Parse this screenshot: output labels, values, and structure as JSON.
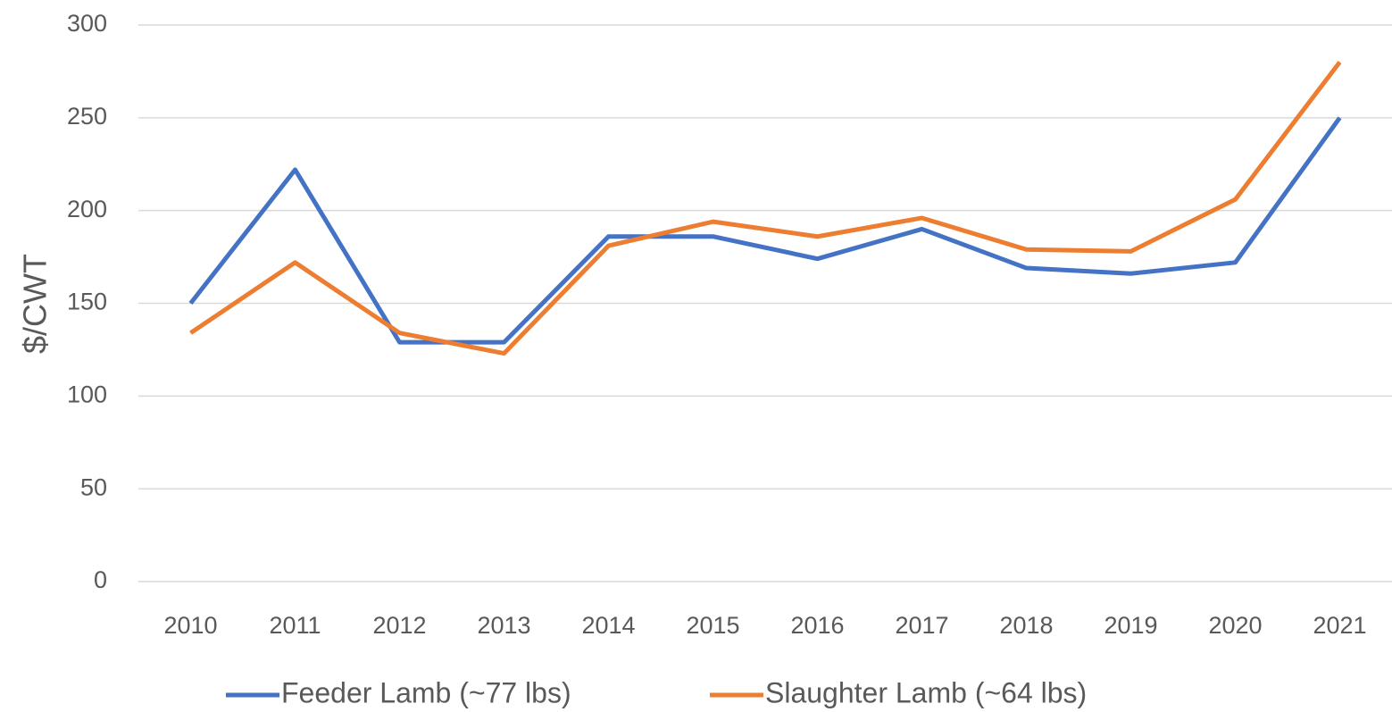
{
  "chart_data": {
    "type": "line",
    "y_label": "$/CWT",
    "categories": [
      "2010",
      "2011",
      "2012",
      "2013",
      "2014",
      "2015",
      "2016",
      "2017",
      "2018",
      "2019",
      "2020",
      "2021"
    ],
    "series": [
      {
        "name": "Feeder Lamb (~77 lbs)",
        "color": "#4472c4",
        "values": [
          150,
          222,
          129,
          129,
          186,
          186,
          174,
          190,
          169,
          166,
          172,
          250
        ]
      },
      {
        "name": "Slaughter Lamb (~64 lbs)",
        "color": "#ed7d31",
        "values": [
          134,
          172,
          134,
          123,
          181,
          194,
          186,
          196,
          179,
          178,
          206,
          280
        ]
      }
    ],
    "ylim": [
      0,
      300
    ],
    "yticks": [
      0,
      50,
      100,
      150,
      200,
      250,
      300
    ],
    "grid": true,
    "legend": "bottom"
  }
}
